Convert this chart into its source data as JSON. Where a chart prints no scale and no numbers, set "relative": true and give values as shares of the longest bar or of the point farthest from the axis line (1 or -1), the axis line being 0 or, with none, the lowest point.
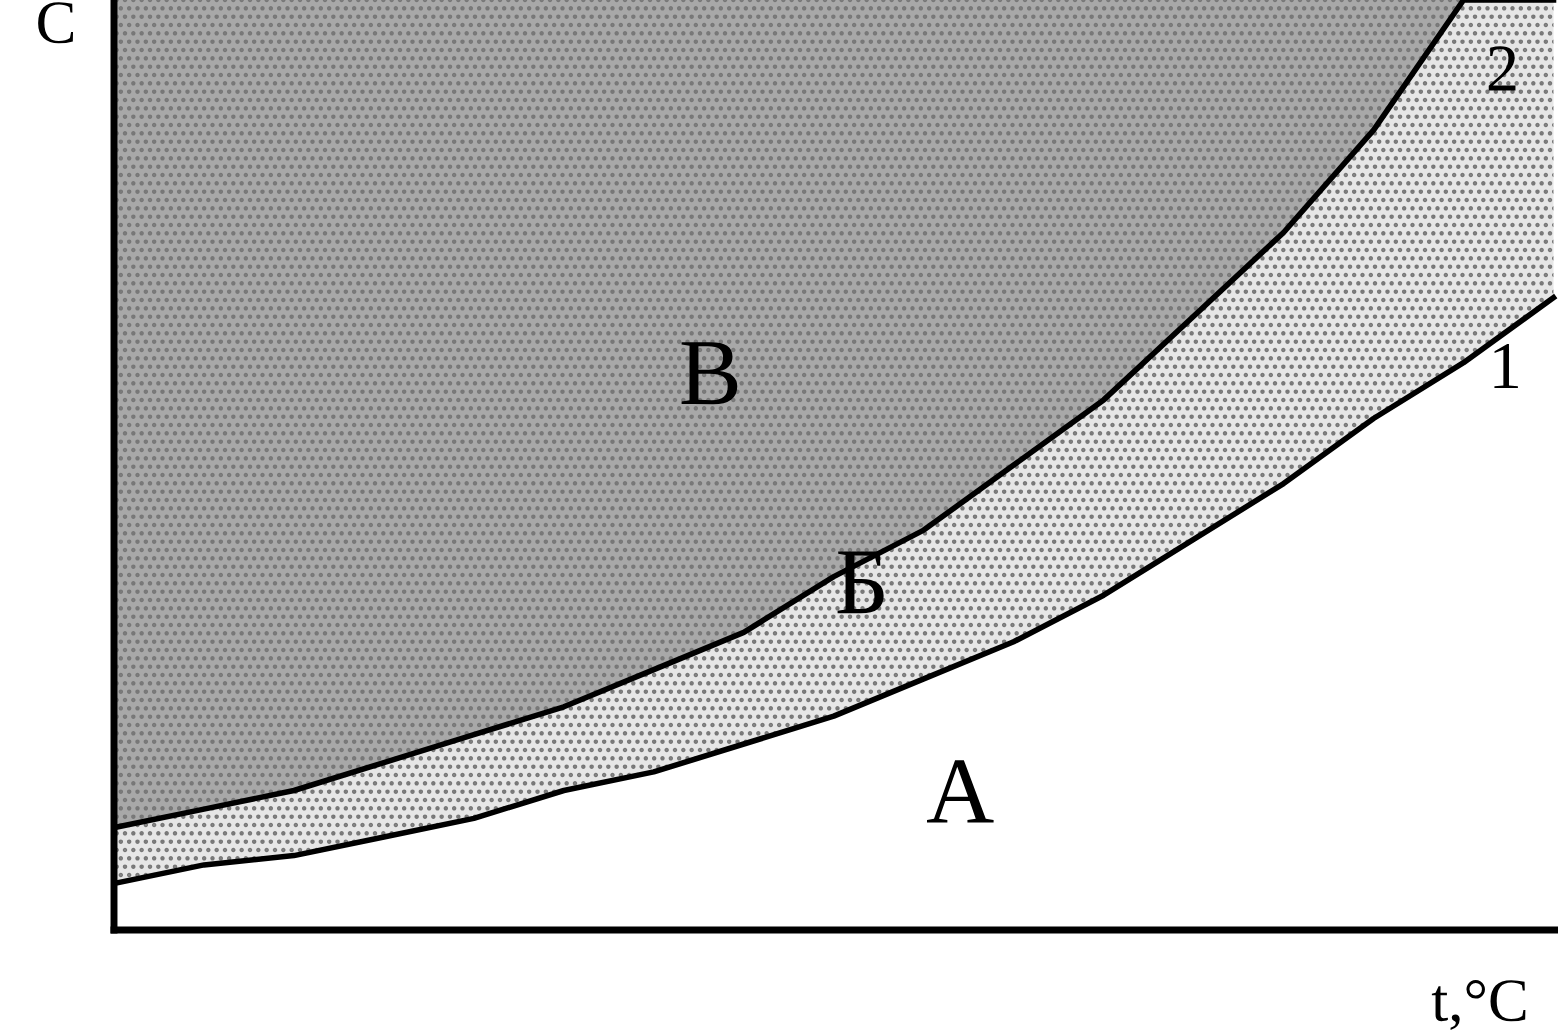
{
  "chart_data": {
    "type": "area",
    "relative": true,
    "stacked": true,
    "xlabel": "t,°C",
    "ylabel": "C",
    "categories": [
      null,
      null,
      null,
      null,
      null,
      null,
      null,
      null,
      null,
      null,
      null,
      null,
      null,
      null,
      null,
      null,
      null
    ],
    "series": [
      {
        "name": "А",
        "color": "#ffffff",
        "values": [
          0.05,
          0.07,
          0.08,
          0.1,
          0.12,
          0.15,
          0.17,
          0.2,
          0.23,
          0.27,
          0.31,
          0.36,
          0.42,
          0.48,
          0.55,
          0.61,
          0.68
        ]
      },
      {
        "name": "Б",
        "color": "#e6e6e6",
        "values": [
          0.06,
          0.06,
          0.07,
          0.08,
          0.09,
          0.09,
          0.11,
          0.12,
          0.15,
          0.16,
          0.19,
          0.21,
          0.24,
          0.27,
          0.31,
          0.39,
          0.32
        ]
      },
      {
        "name": "В",
        "color": "#a8a8a8",
        "values": [
          0.89,
          0.87,
          0.85,
          0.82,
          0.79,
          0.76,
          0.72,
          0.68,
          0.62,
          0.57,
          0.5,
          0.43,
          0.34,
          0.25,
          0.14,
          0,
          0
        ]
      }
    ],
    "annotations": [
      "1",
      "2"
    ],
    "grid": false,
    "legend": false,
    "line_style": "solid"
  }
}
